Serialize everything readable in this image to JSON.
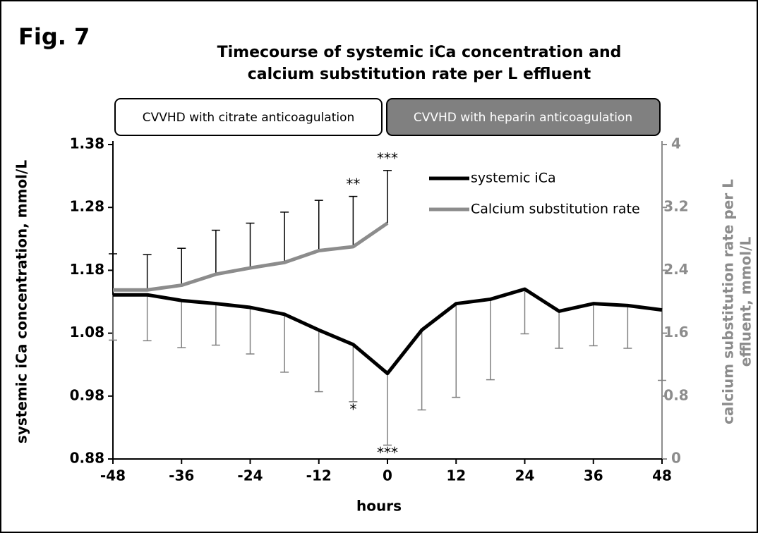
{
  "chart_data": {
    "type": "line",
    "figure_label": "Fig. 7",
    "title": [
      "Timecourse of systemic iCa concentration and",
      "calcium substitution rate per L effluent"
    ],
    "phases": [
      "CVVHD with citrate anticoagulation",
      "CVVHD with heparin anticoagulation"
    ],
    "xlabel": "hours",
    "ylabel": "systemic iCa concentration, mmol/L",
    "y2label": [
      "calcium substitution rate per L",
      "effluent, mmol/L"
    ],
    "x": [
      -48,
      -42,
      -36,
      -30,
      -24,
      -18,
      -12,
      -6,
      0,
      6,
      12,
      18,
      24,
      30,
      36,
      42,
      48
    ],
    "xlim": [
      -48,
      48
    ],
    "xticks": [
      -48,
      -36,
      -24,
      -12,
      0,
      12,
      24,
      36,
      48
    ],
    "ylim": [
      0.88,
      1.38
    ],
    "yticks": [
      0.88,
      0.98,
      1.08,
      1.18,
      1.28,
      1.38
    ],
    "y2lim": [
      0,
      4
    ],
    "y2ticks": [
      0,
      0.8,
      1.6,
      2.4,
      3.2,
      4
    ],
    "series": [
      {
        "name": "systemic iCa",
        "color": "#000000",
        "axis": "y",
        "values": [
          1.141,
          1.141,
          1.132,
          1.127,
          1.121,
          1.11,
          1.085,
          1.062,
          1.016,
          1.085,
          1.127,
          1.134,
          1.15,
          1.115,
          1.127,
          1.124,
          1.117
        ],
        "errors": [
          0.072,
          0.073,
          0.075,
          0.066,
          0.074,
          0.092,
          0.098,
          0.091,
          0.114,
          0.127,
          0.149,
          0.128,
          0.071,
          0.059,
          0.067,
          0.068,
          0.112
        ],
        "error_color": "#808080",
        "error_direction": "down"
      },
      {
        "name": "Calcium substitution rate",
        "color": "#8c8c8c",
        "axis": "y2",
        "values": [
          2.15,
          2.15,
          2.21,
          2.35,
          2.43,
          2.5,
          2.65,
          2.7,
          3.0,
          null,
          null,
          null,
          null,
          null,
          null,
          null,
          null
        ],
        "errors": [
          0.46,
          0.45,
          0.47,
          0.56,
          0.57,
          0.64,
          0.64,
          0.64,
          0.67,
          null,
          null,
          null,
          null,
          null,
          null,
          null,
          null
        ],
        "error_color": "#000000",
        "error_direction": "up"
      }
    ],
    "annotations": [
      {
        "text": "**",
        "x": -6,
        "series": 1,
        "position": "above"
      },
      {
        "text": "***",
        "x": 0,
        "series": 1,
        "position": "above"
      },
      {
        "text": "*",
        "x": -6,
        "series": 0,
        "position": "below"
      },
      {
        "text": "***",
        "x": 0,
        "series": 0,
        "position": "below"
      }
    ]
  }
}
